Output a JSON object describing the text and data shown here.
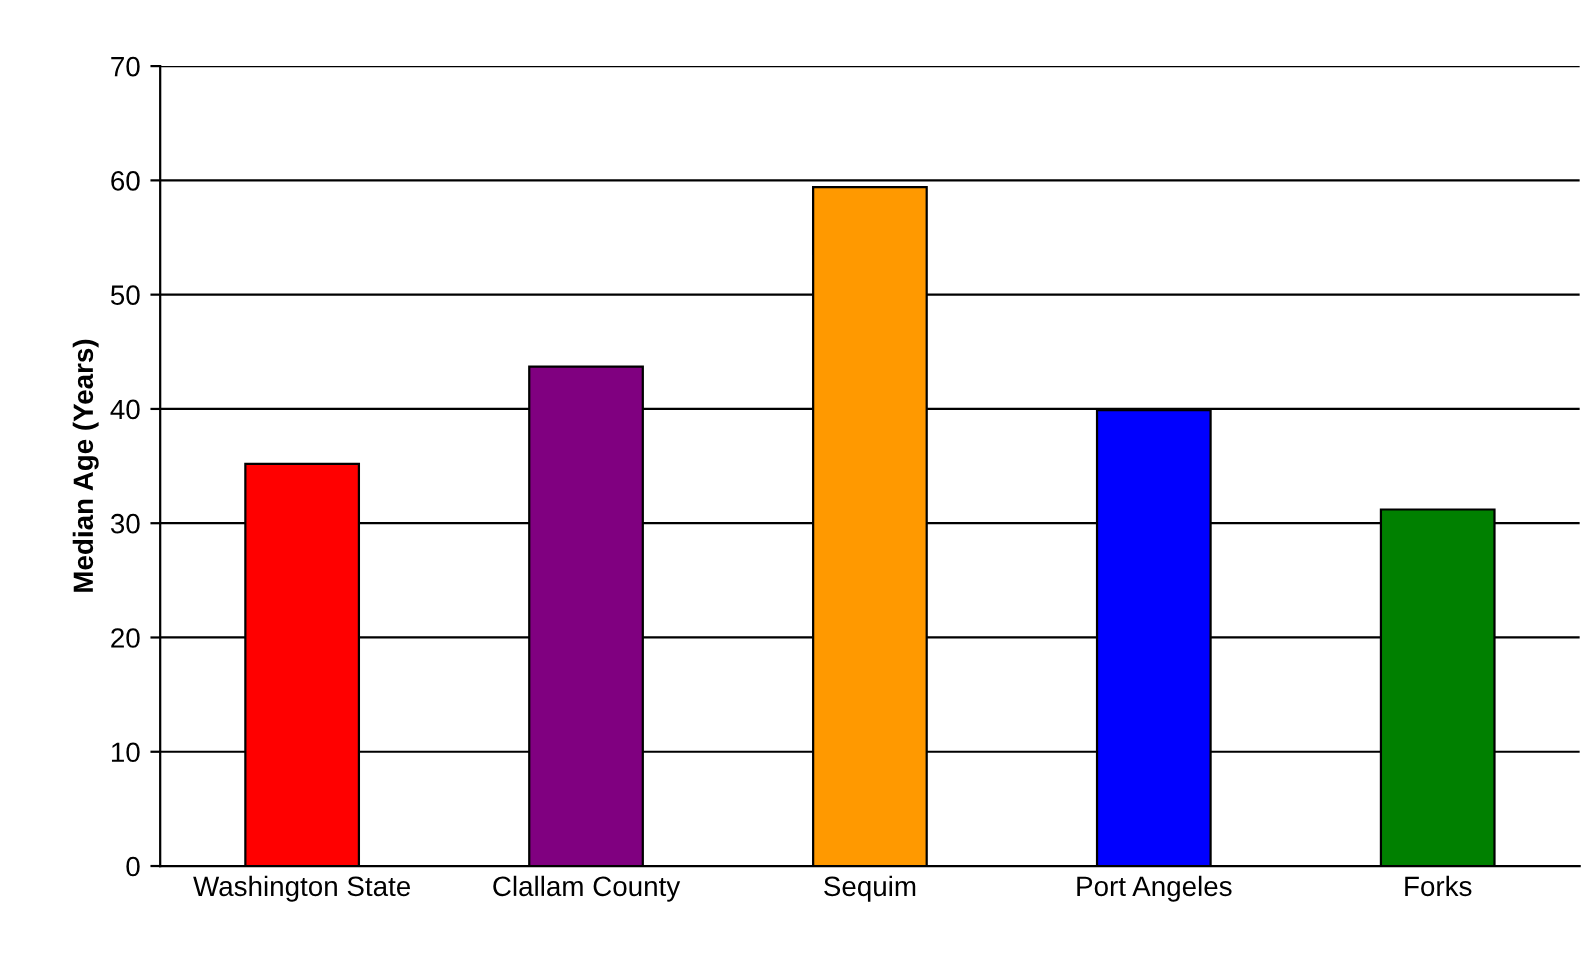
{
  "chart_data": {
    "type": "bar",
    "ylabel": "Median Age (Years)",
    "categories": [
      "Washington State",
      "Clallam County",
      "Sequim",
      "Port Angeles",
      "Forks"
    ],
    "values": [
      35.2,
      43.7,
      59.4,
      39.9,
      31.2
    ],
    "colors": [
      "#ff0000",
      "#800080",
      "#ff9900",
      "#0000ff",
      "#008000"
    ],
    "ylim": [
      0,
      70
    ],
    "yticks": [
      0,
      10,
      20,
      30,
      40,
      50,
      60,
      70
    ],
    "grid": "y"
  }
}
